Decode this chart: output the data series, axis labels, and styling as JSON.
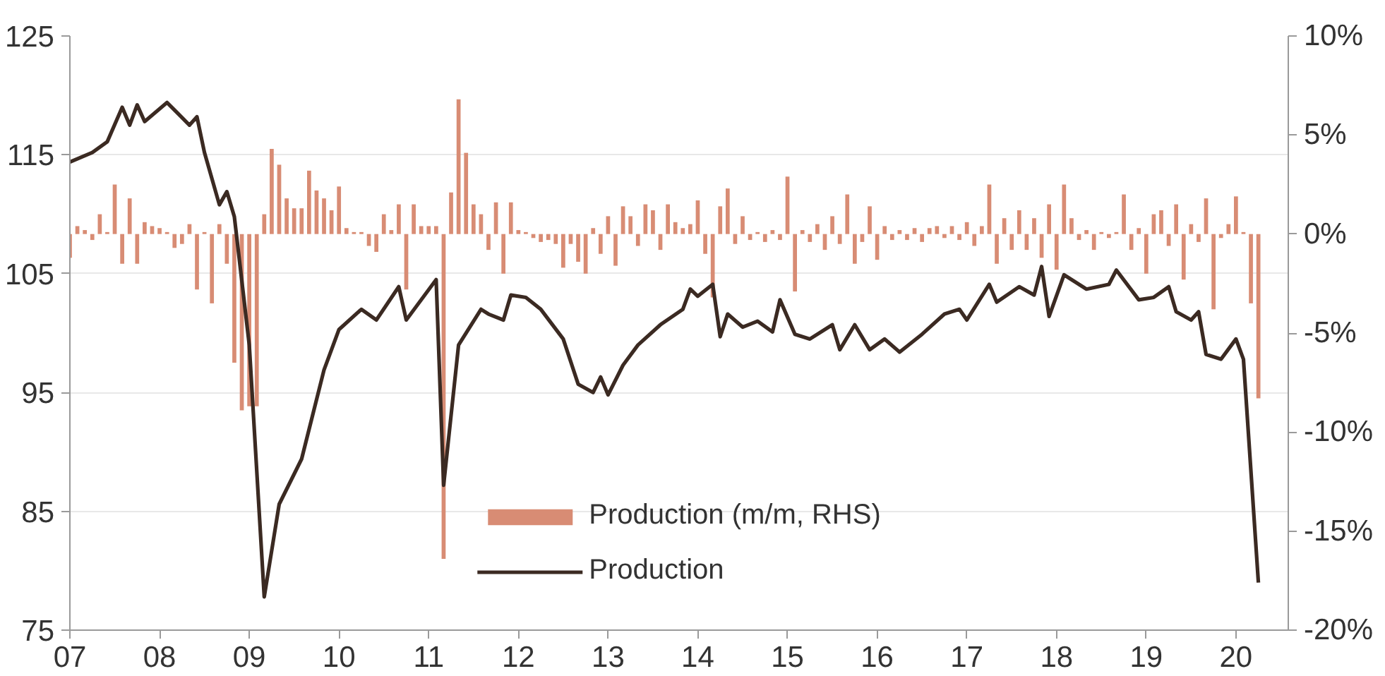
{
  "chart_data": {
    "type": "line",
    "xlim": [
      "2007-01",
      "2020-08"
    ],
    "xticks": [
      {
        "value": "2007-01",
        "label": "07"
      },
      {
        "value": "2008-01",
        "label": "08"
      },
      {
        "value": "2009-01",
        "label": "09"
      },
      {
        "value": "2010-01",
        "label": "10"
      },
      {
        "value": "2011-01",
        "label": "11"
      },
      {
        "value": "2012-01",
        "label": "12"
      },
      {
        "value": "2013-01",
        "label": "13"
      },
      {
        "value": "2014-01",
        "label": "14"
      },
      {
        "value": "2015-01",
        "label": "15"
      },
      {
        "value": "2016-01",
        "label": "16"
      },
      {
        "value": "2017-01",
        "label": "17"
      },
      {
        "value": "2018-01",
        "label": "18"
      },
      {
        "value": "2019-01",
        "label": "19"
      },
      {
        "value": "2020-01",
        "label": "20"
      }
    ],
    "ylim": [
      75,
      125
    ],
    "yticks": [
      75,
      85,
      95,
      105,
      115,
      125
    ],
    "y2lim": [
      -20,
      10
    ],
    "y2ticks": [
      {
        "value": -20,
        "label": "-20%"
      },
      {
        "value": -15,
        "label": "-15%"
      },
      {
        "value": -10,
        "label": "-10%"
      },
      {
        "value": -5,
        "label": "-5%"
      },
      {
        "value": 0,
        "label": "0%"
      },
      {
        "value": 5,
        "label": "5%"
      },
      {
        "value": 10,
        "label": "10%"
      }
    ],
    "grid": "y",
    "legend": "bottom",
    "marker": "none",
    "line_style": "solid",
    "series": [
      {
        "name": "Production (m/m, RHS)",
        "type": "bar",
        "axis": "y2",
        "color": "#d88c74",
        "x": [
          "2007-01",
          "2007-02",
          "2007-03",
          "2007-04",
          "2007-05",
          "2007-06",
          "2007-07",
          "2007-08",
          "2007-09",
          "2007-10",
          "2007-11",
          "2007-12",
          "2008-01",
          "2008-02",
          "2008-03",
          "2008-04",
          "2008-05",
          "2008-06",
          "2008-07",
          "2008-08",
          "2008-09",
          "2008-10",
          "2008-11",
          "2008-12",
          "2009-01",
          "2009-02",
          "2009-03",
          "2009-04",
          "2009-05",
          "2009-06",
          "2009-07",
          "2009-08",
          "2009-09",
          "2009-10",
          "2009-11",
          "2009-12",
          "2010-01",
          "2010-02",
          "2010-03",
          "2010-04",
          "2010-05",
          "2010-06",
          "2010-07",
          "2010-08",
          "2010-09",
          "2010-10",
          "2010-11",
          "2010-12",
          "2011-01",
          "2011-02",
          "2011-03",
          "2011-04",
          "2011-05",
          "2011-06",
          "2011-07",
          "2011-08",
          "2011-09",
          "2011-10",
          "2011-11",
          "2011-12",
          "2012-01",
          "2012-02",
          "2012-03",
          "2012-04",
          "2012-05",
          "2012-06",
          "2012-07",
          "2012-08",
          "2012-09",
          "2012-10",
          "2012-11",
          "2012-12",
          "2013-01",
          "2013-02",
          "2013-03",
          "2013-04",
          "2013-05",
          "2013-06",
          "2013-07",
          "2013-08",
          "2013-09",
          "2013-10",
          "2013-11",
          "2013-12",
          "2014-01",
          "2014-02",
          "2014-03",
          "2014-04",
          "2014-05",
          "2014-06",
          "2014-07",
          "2014-08",
          "2014-09",
          "2014-10",
          "2014-11",
          "2014-12",
          "2015-01",
          "2015-02",
          "2015-03",
          "2015-04",
          "2015-05",
          "2015-06",
          "2015-07",
          "2015-08",
          "2015-09",
          "2015-10",
          "2015-11",
          "2015-12",
          "2016-01",
          "2016-02",
          "2016-03",
          "2016-04",
          "2016-05",
          "2016-06",
          "2016-07",
          "2016-08",
          "2016-09",
          "2016-10",
          "2016-11",
          "2016-12",
          "2017-01",
          "2017-02",
          "2017-03",
          "2017-04",
          "2017-05",
          "2017-06",
          "2017-07",
          "2017-08",
          "2017-09",
          "2017-10",
          "2017-11",
          "2017-12",
          "2018-01",
          "2018-02",
          "2018-03",
          "2018-04",
          "2018-05",
          "2018-06",
          "2018-07",
          "2018-08",
          "2018-09",
          "2018-10",
          "2018-11",
          "2018-12",
          "2019-01",
          "2019-02",
          "2019-03",
          "2019-04",
          "2019-05",
          "2019-06",
          "2019-07",
          "2019-08",
          "2019-09",
          "2019-10",
          "2019-11",
          "2019-12",
          "2020-01",
          "2020-02",
          "2020-03",
          "2020-04"
        ],
        "values": [
          -1.2,
          0.4,
          0.2,
          -0.3,
          1.0,
          0.1,
          2.5,
          -1.5,
          1.8,
          -1.5,
          0.6,
          0.4,
          0.3,
          0.1,
          -0.7,
          -0.5,
          0.5,
          -2.8,
          0.1,
          -3.5,
          0.5,
          -1.5,
          -6.5,
          -8.9,
          -8.7,
          -8.7,
          1.0,
          4.3,
          3.5,
          1.8,
          1.3,
          1.3,
          3.2,
          2.2,
          1.8,
          1.2,
          2.4,
          0.3,
          0.1,
          0.1,
          -0.6,
          -0.9,
          1.0,
          0.2,
          1.5,
          -2.8,
          1.5,
          0.4,
          0.4,
          0.4,
          -16.4,
          2.1,
          6.8,
          4.1,
          1.5,
          1.0,
          -0.8,
          1.6,
          -2.0,
          1.6,
          0.2,
          0.1,
          -0.2,
          -0.4,
          -0.3,
          -0.5,
          -1.7,
          -0.5,
          -1.4,
          -2.0,
          0.3,
          -1.0,
          0.9,
          -1.6,
          1.4,
          0.9,
          -0.6,
          1.5,
          1.2,
          -0.8,
          1.5,
          0.6,
          0.3,
          0.5,
          1.7,
          -1.0,
          -3.2,
          1.4,
          2.3,
          -0.5,
          0.9,
          -0.3,
          0.1,
          -0.4,
          0.2,
          -0.3,
          2.9,
          -2.9,
          0.2,
          -0.4,
          0.5,
          -0.8,
          0.9,
          -0.5,
          2.0,
          -1.5,
          -0.4,
          1.4,
          -1.3,
          0.4,
          -0.3,
          0.2,
          -0.3,
          0.3,
          -0.4,
          0.3,
          0.4,
          -0.2,
          0.4,
          -0.3,
          0.6,
          -0.6,
          0.4,
          2.5,
          -1.5,
          0.8,
          -0.8,
          1.2,
          -0.8,
          0.8,
          -1.2,
          1.5,
          -1.8,
          2.5,
          0.8,
          -0.3,
          0.2,
          -0.8,
          0.1,
          -0.2,
          0.1,
          2.0,
          -0.8,
          0.3,
          -2.0,
          1.0,
          1.2,
          -0.6,
          1.5,
          -2.3,
          0.5,
          -0.4,
          1.8,
          -3.8,
          -0.2,
          0.5,
          1.9,
          0.1,
          -3.5,
          -8.3
        ]
      },
      {
        "name": "Production",
        "color": "#3b2a22",
        "x": [
          "2007-01",
          "2007-04",
          "2007-06",
          "2007-08",
          "2007-09",
          "2007-10",
          "2007-11",
          "2008-02",
          "2008-05",
          "2008-06",
          "2008-07",
          "2008-09",
          "2008-10",
          "2008-11",
          "2009-01",
          "2009-03",
          "2009-05",
          "2009-08",
          "2009-11",
          "2010-01",
          "2010-04",
          "2010-06",
          "2010-09",
          "2010-10",
          "2011-02",
          "2011-03",
          "2011-05",
          "2011-08",
          "2011-09",
          "2011-11",
          "2011-12",
          "2012-02",
          "2012-04",
          "2012-07",
          "2012-09",
          "2012-11",
          "2012-12",
          "2013-01",
          "2013-03",
          "2013-05",
          "2013-08",
          "2013-11",
          "2013-12",
          "2014-01",
          "2014-03",
          "2014-04",
          "2014-05",
          "2014-07",
          "2014-09",
          "2014-11",
          "2014-12",
          "2015-02",
          "2015-04",
          "2015-07",
          "2015-08",
          "2015-10",
          "2015-12",
          "2016-02",
          "2016-04",
          "2016-07",
          "2016-10",
          "2016-12",
          "2017-01",
          "2017-04",
          "2017-05",
          "2017-08",
          "2017-10",
          "2017-11",
          "2017-12",
          "2018-02",
          "2018-05",
          "2018-08",
          "2018-09",
          "2018-12",
          "2019-02",
          "2019-04",
          "2019-05",
          "2019-07",
          "2019-08",
          "2019-09",
          "2019-11",
          "2020-01",
          "2020-02",
          "2020-04"
        ],
        "values": [
          114.4,
          115.2,
          116.1,
          119.0,
          117.5,
          119.2,
          117.8,
          119.4,
          117.5,
          118.2,
          115.2,
          110.8,
          111.9,
          109.8,
          99.0,
          77.8,
          85.6,
          89.4,
          96.9,
          100.3,
          102.0,
          101.1,
          103.9,
          101.1,
          104.5,
          87.2,
          99.0,
          102.0,
          101.6,
          101.1,
          103.2,
          103.0,
          102.0,
          99.5,
          95.7,
          95.0,
          96.3,
          94.8,
          97.3,
          99.0,
          100.7,
          102.0,
          103.7,
          103.1,
          104.1,
          99.7,
          101.6,
          100.5,
          101.0,
          100.1,
          102.8,
          99.9,
          99.5,
          100.7,
          98.6,
          100.7,
          98.6,
          99.5,
          98.4,
          99.9,
          101.6,
          102.0,
          101.1,
          104.1,
          102.6,
          103.9,
          103.2,
          105.6,
          101.4,
          104.9,
          103.7,
          104.1,
          105.3,
          102.8,
          103.0,
          103.9,
          101.8,
          101.1,
          101.8,
          98.2,
          97.8,
          99.5,
          97.8,
          79.0
        ]
      }
    ]
  }
}
